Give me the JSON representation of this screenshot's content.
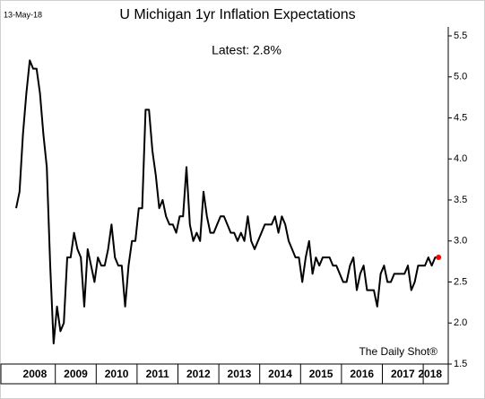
{
  "chart_data": {
    "type": "line",
    "date_note": "13-May-18",
    "title": "U Michigan 1yr Inflation Expectations",
    "subtitle": "Latest:  2.8%",
    "source": "The Daily Shot®",
    "categories": [
      null,
      null,
      null,
      null,
      null,
      null,
      "2008",
      null,
      null,
      null,
      null,
      null,
      null,
      null,
      null,
      null,
      null,
      null,
      "2009",
      null,
      null,
      null,
      null,
      null,
      null,
      null,
      null,
      null,
      null,
      null,
      "2010",
      null,
      null,
      null,
      null,
      null,
      null,
      null,
      null,
      null,
      null,
      null,
      "2011",
      null,
      null,
      null,
      null,
      null,
      null,
      null,
      null,
      null,
      null,
      null,
      "2012",
      null,
      null,
      null,
      null,
      null,
      null,
      null,
      null,
      null,
      null,
      null,
      "2013",
      null,
      null,
      null,
      null,
      null,
      null,
      null,
      null,
      null,
      null,
      null,
      "2014",
      null,
      null,
      null,
      null,
      null,
      null,
      null,
      null,
      null,
      null,
      null,
      "2015",
      null,
      null,
      null,
      null,
      null,
      null,
      null,
      null,
      null,
      null,
      null,
      "2016",
      null,
      null,
      null,
      null,
      null,
      null,
      null,
      null,
      null,
      null,
      null,
      "2017",
      null,
      null,
      null,
      null,
      null,
      null,
      null,
      "2018",
      null,
      null
    ],
    "series": [
      {
        "name": "U Michigan 1yr Inflation Expectations",
        "color": "#000000",
        "values": [
          3.4,
          3.6,
          4.3,
          4.8,
          5.2,
          5.1,
          5.1,
          4.8,
          4.3,
          3.9,
          2.7,
          1.75,
          2.2,
          1.9,
          2.0,
          2.8,
          2.8,
          3.1,
          2.9,
          2.8,
          2.2,
          2.9,
          2.7,
          2.5,
          2.8,
          2.7,
          2.7,
          2.9,
          3.2,
          2.8,
          2.7,
          2.7,
          2.2,
          2.7,
          3.0,
          3.0,
          3.4,
          3.4,
          4.6,
          4.6,
          4.1,
          3.8,
          3.4,
          3.5,
          3.3,
          3.2,
          3.2,
          3.1,
          3.3,
          3.3,
          3.9,
          3.2,
          3.0,
          3.1,
          3.0,
          3.6,
          3.3,
          3.1,
          3.1,
          3.2,
          3.3,
          3.3,
          3.2,
          3.1,
          3.1,
          3.0,
          3.1,
          3.0,
          3.3,
          3.0,
          2.9,
          3.0,
          3.1,
          3.2,
          3.2,
          3.2,
          3.3,
          3.1,
          3.3,
          3.2,
          3.0,
          2.9,
          2.8,
          2.8,
          2.5,
          2.8,
          3.0,
          2.6,
          2.8,
          2.7,
          2.8,
          2.8,
          2.8,
          2.7,
          2.7,
          2.6,
          2.5,
          2.5,
          2.7,
          2.8,
          2.4,
          2.6,
          2.7,
          2.4,
          2.4,
          2.4,
          2.2,
          2.6,
          2.7,
          2.5,
          2.5,
          2.6,
          2.6,
          2.6,
          2.6,
          2.7,
          2.4,
          2.5,
          2.7,
          2.7,
          2.7,
          2.8,
          2.7,
          2.8,
          2.8
        ]
      }
    ],
    "highlight_color": "#ff0000",
    "ylim": [
      1.5,
      5.5
    ],
    "yticks": [
      1.5,
      {
        "value": 2,
        "label": "2.0"
      },
      2.5,
      {
        "value": 3,
        "label": "3.0"
      },
      3.5,
      {
        "value": 4,
        "label": "4.0"
      },
      4.5,
      {
        "value": 5,
        "label": "5.0"
      },
      5.5
    ]
  }
}
